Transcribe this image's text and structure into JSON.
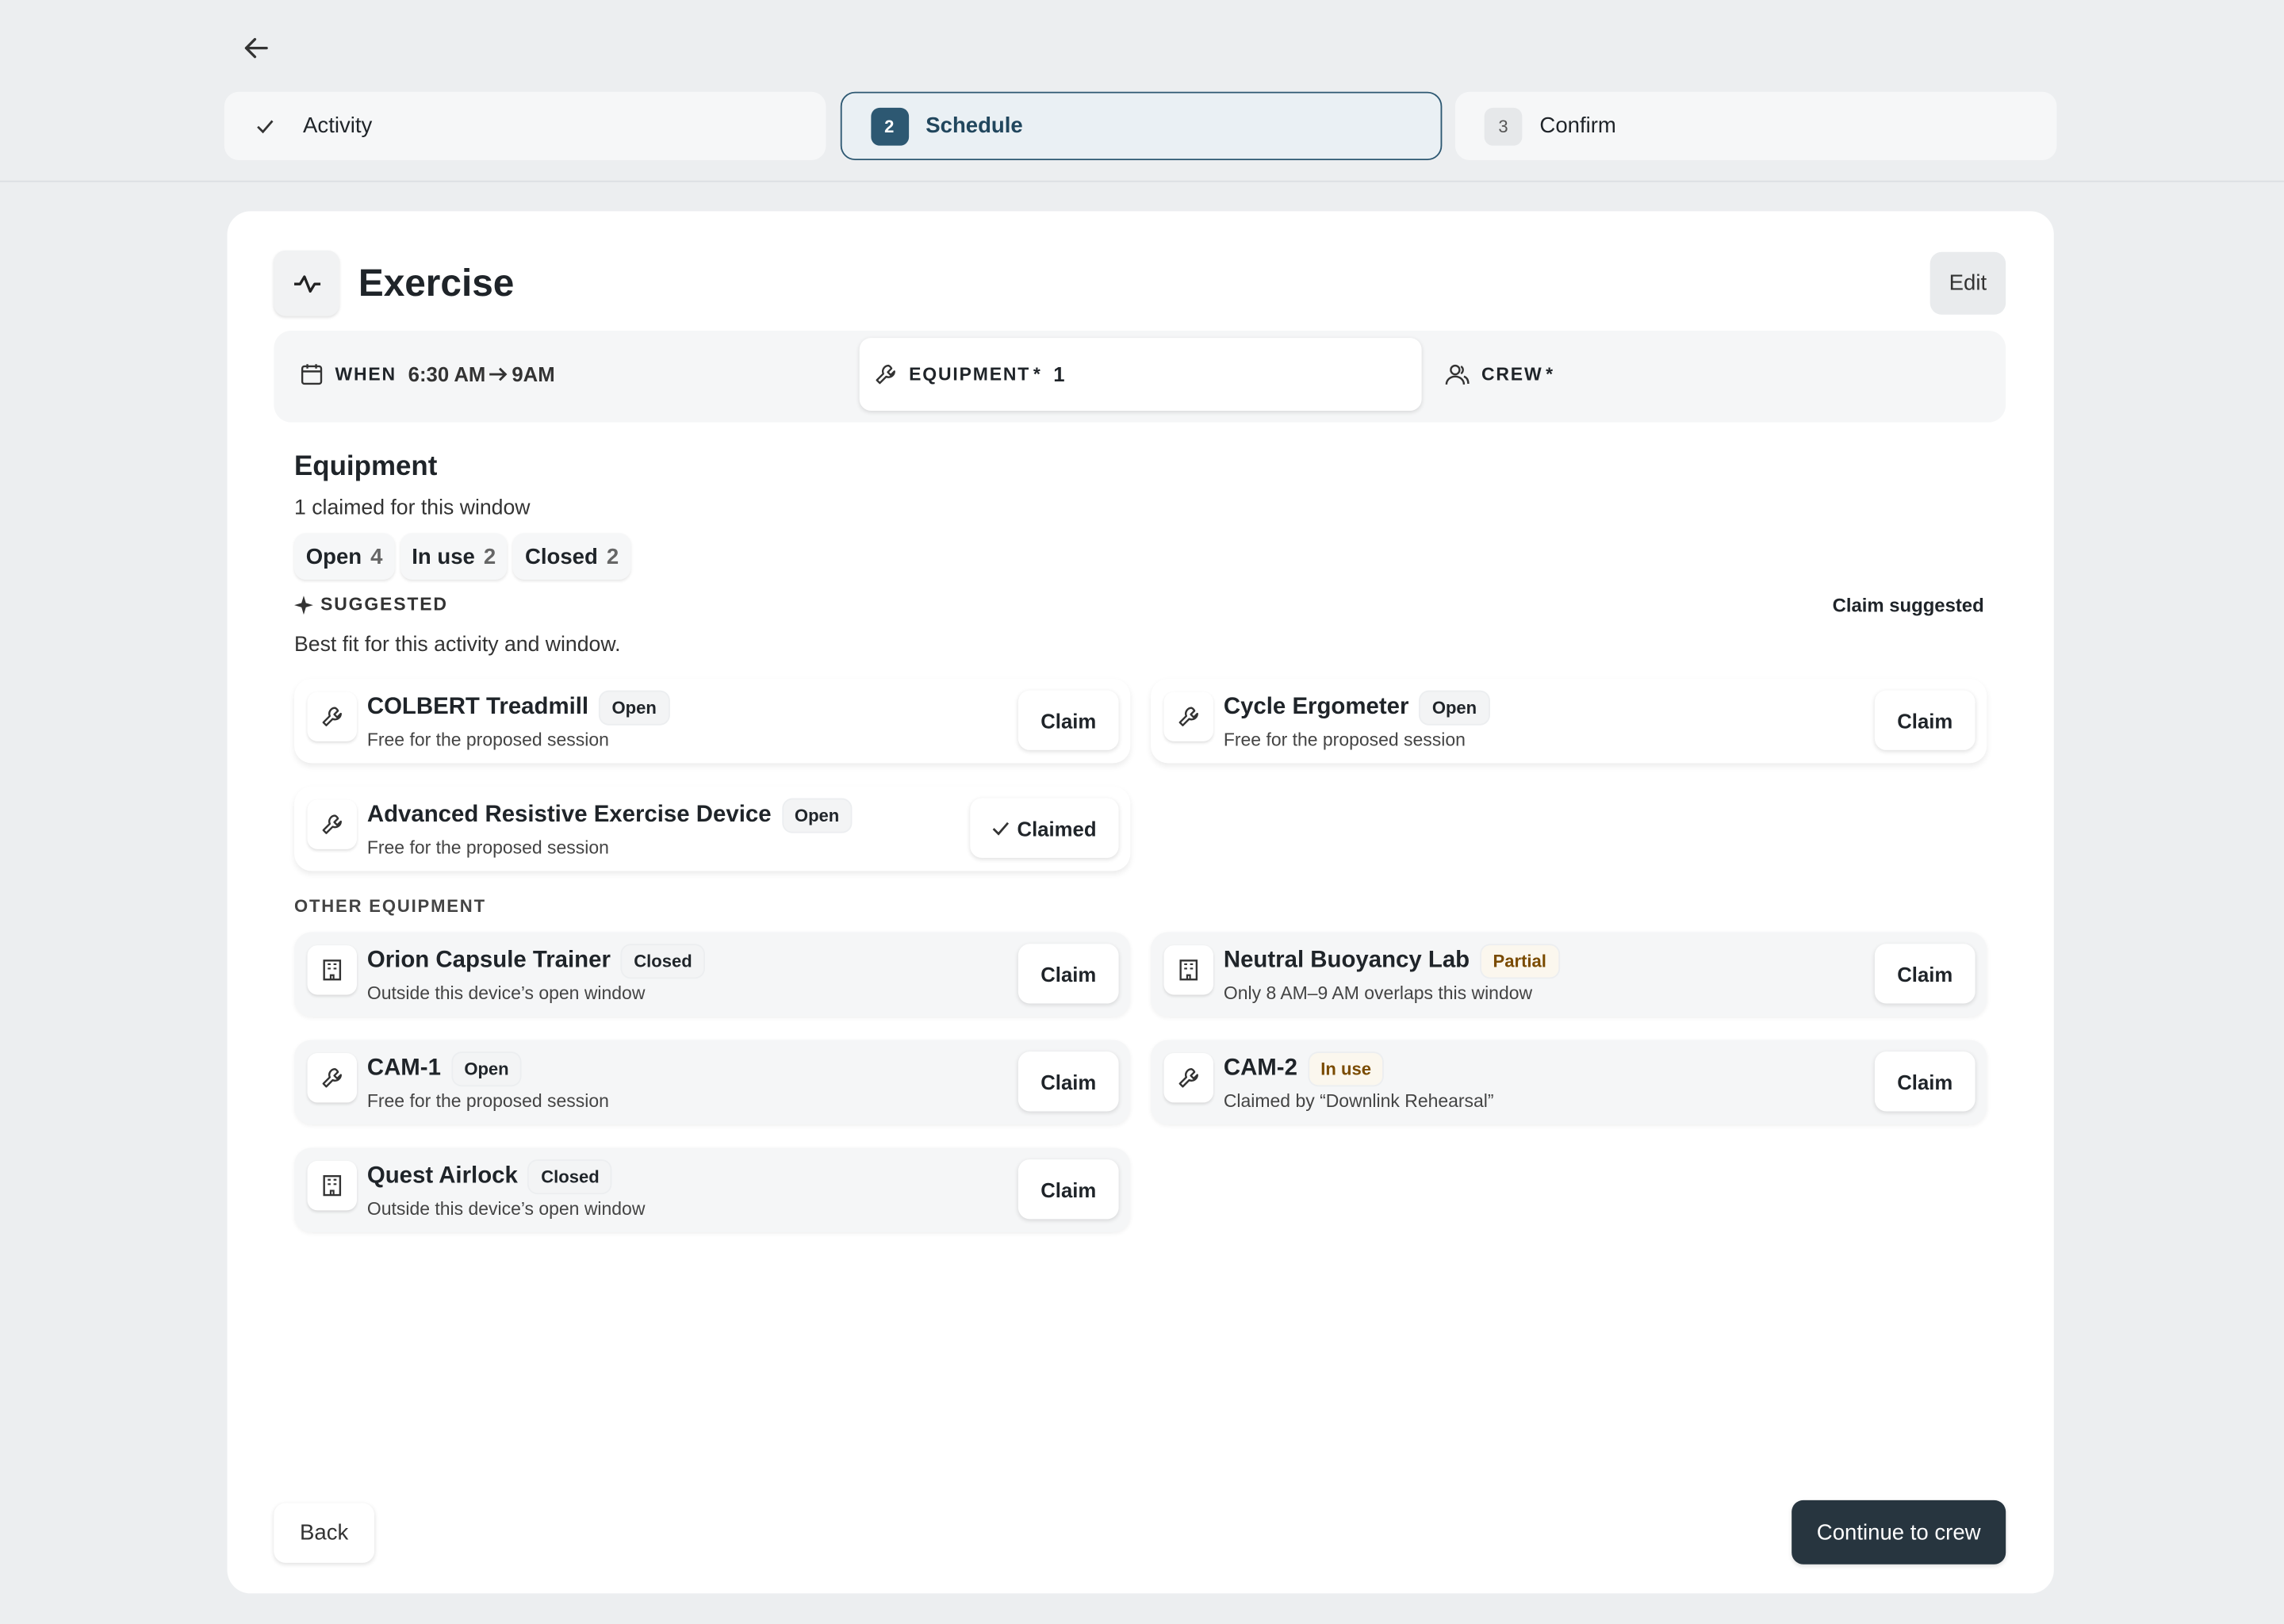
{
  "stepper": [
    {
      "label": "Activity"
    },
    {
      "number": 2,
      "label": "Schedule"
    },
    {
      "number": 3,
      "label": "Confirm"
    }
  ],
  "header": {
    "title": "Exercise",
    "edit": "Edit"
  },
  "summary": {
    "when_label": "WHEN",
    "when_start": "6:30 AM",
    "when_end": "9AM",
    "equipment_label": "EQUIPMENT",
    "equipment_required": "*",
    "equipment_count": 1,
    "crew_label": "CREW",
    "crew_required": "*"
  },
  "equipment": {
    "title": "Equipment",
    "subtitle": "1 claimed for this window",
    "filters": [
      {
        "label": "Open",
        "count": 4
      },
      {
        "label": "In use",
        "count": 2
      },
      {
        "label": "Closed",
        "count": 2
      }
    ],
    "suggested_label": "SUGGESTED",
    "claim_suggested": "Claim suggested",
    "suggested_note": "Best fit for this activity and window.",
    "suggested": [
      {
        "name": "COLBERT Treadmill",
        "status": "Open",
        "detail": "Free for the proposed session",
        "action": "Claim"
      },
      {
        "name": "Cycle Ergometer",
        "status": "Open",
        "detail": "Free for the proposed session",
        "action": "Claim"
      },
      {
        "name": "Advanced Resistive Exercise Device",
        "status": "Open",
        "detail": "Free for the proposed session",
        "action": "Claimed"
      }
    ],
    "other_label": "OTHER EQUIPMENT",
    "other": [
      {
        "name": "Orion Capsule Trainer",
        "status": "Closed",
        "detail": "Outside this device’s open window",
        "action": "Claim"
      },
      {
        "name": "Neutral Buoyancy Lab",
        "status": "Partial",
        "detail": "Only 8 AM–9 AM overlaps this window",
        "action": "Claim"
      },
      {
        "name": "CAM-1",
        "status": "Open",
        "detail": "Free for the proposed session",
        "action": "Claim"
      },
      {
        "name": "CAM-2",
        "status": "In use",
        "detail": "Claimed by “Downlink Rehearsal”",
        "action": "Claim"
      },
      {
        "name": "Quest Airlock",
        "status": "Closed",
        "detail": "Outside this device’s open window",
        "action": "Claim"
      }
    ]
  },
  "footer": {
    "back": "Back",
    "continue": "Continue to crew"
  }
}
